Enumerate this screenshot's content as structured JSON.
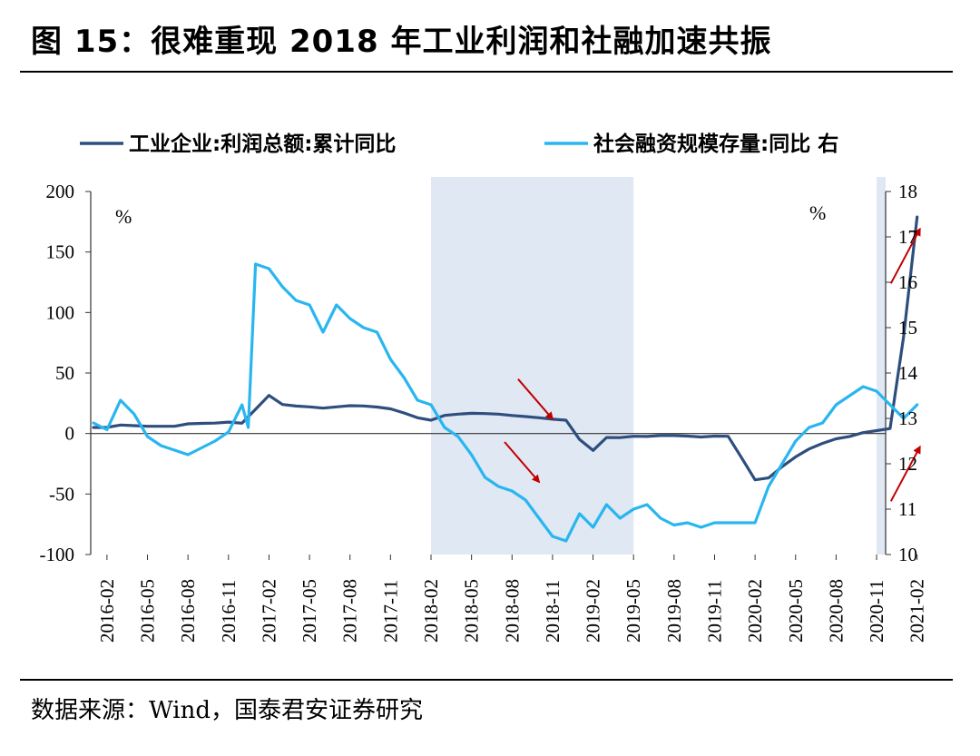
{
  "title": "图 15：很难重现 2018 年工业利润和社融加速共振",
  "source": "数据来源：Wind，国泰君安证券研究",
  "chart_data": {
    "type": "line",
    "legend": [
      "工业企业:利润总额:累计同比",
      "社会融资规模存量:同比 右"
    ],
    "left_axis": {
      "unit": "%",
      "range": [
        -100,
        200
      ],
      "ticks": [
        "200",
        "150",
        "100",
        "50",
        "0",
        "-50",
        "-100"
      ]
    },
    "right_axis": {
      "unit": "%",
      "range": [
        10,
        18
      ],
      "ticks": [
        "18",
        "17",
        "16",
        "15",
        "14",
        "13",
        "12",
        "11",
        "10"
      ]
    },
    "x_tick_labels": [
      "2016-02",
      "2016-05",
      "2016-08",
      "2016-11",
      "2017-02",
      "2017-05",
      "2017-08",
      "2017-11",
      "2018-02",
      "2018-05",
      "2018-08",
      "2018-11",
      "2019-02",
      "2019-05",
      "2019-08",
      "2019-11",
      "2020-02",
      "2020-05",
      "2020-08",
      "2020-11",
      "2021-02"
    ],
    "shaded_periods": [
      [
        "2018-02",
        "2019-04"
      ],
      [
        "2020-11",
        "2021-02"
      ]
    ],
    "series": [
      {
        "name": "工业企业:利润总额:累计同比",
        "axis": "left",
        "color": "#2e4e7e",
        "points": [
          [
            "2016-01",
            5
          ],
          [
            "2016-02",
            5
          ],
          [
            "2016-03",
            7
          ],
          [
            "2016-04",
            6.5
          ],
          [
            "2016-05",
            6
          ],
          [
            "2016-06",
            6
          ],
          [
            "2016-07",
            6
          ],
          [
            "2016-08",
            8
          ],
          [
            "2016-09",
            8.4
          ],
          [
            "2016-10",
            8.6
          ],
          [
            "2016-11",
            9.4
          ],
          [
            "2016-12",
            8.5
          ],
          [
            "2017-01",
            20
          ],
          [
            "2017-02",
            31.5
          ],
          [
            "2017-03",
            24
          ],
          [
            "2017-04",
            22.7
          ],
          [
            "2017-05",
            22
          ],
          [
            "2017-06",
            21
          ],
          [
            "2017-07",
            22
          ],
          [
            "2017-08",
            23
          ],
          [
            "2017-09",
            22.8
          ],
          [
            "2017-10",
            21.9
          ],
          [
            "2017-11",
            20.4
          ],
          [
            "2017-12",
            17
          ],
          [
            "2018-01",
            13
          ],
          [
            "2018-02",
            11
          ],
          [
            "2018-03",
            15
          ],
          [
            "2018-04",
            16
          ],
          [
            "2018-05",
            16.7
          ],
          [
            "2018-06",
            16.5
          ],
          [
            "2018-07",
            16
          ],
          [
            "2018-08",
            14.9
          ],
          [
            "2018-09",
            14
          ],
          [
            "2018-10",
            13
          ],
          [
            "2018-11",
            11.8
          ],
          [
            "2018-12",
            11
          ],
          [
            "2019-01",
            -5
          ],
          [
            "2019-02",
            -14
          ],
          [
            "2019-03",
            -3.3
          ],
          [
            "2019-04",
            -3.4
          ],
          [
            "2019-05",
            -2.3
          ],
          [
            "2019-06",
            -2.4
          ],
          [
            "2019-07",
            -1.7
          ],
          [
            "2019-08",
            -1.7
          ],
          [
            "2019-09",
            -2.1
          ],
          [
            "2019-10",
            -2.9
          ],
          [
            "2019-11",
            -2.1
          ],
          [
            "2019-12",
            -2.3
          ],
          [
            "2020-01",
            -20
          ],
          [
            "2020-02",
            -38.3
          ],
          [
            "2020-03",
            -36.7
          ],
          [
            "2020-04",
            -27.4
          ],
          [
            "2020-05",
            -19.3
          ],
          [
            "2020-06",
            -12.8
          ],
          [
            "2020-07",
            -8.1
          ],
          [
            "2020-08",
            -4.4
          ],
          [
            "2020-09",
            -2.4
          ],
          [
            "2020-10",
            0.7
          ],
          [
            "2020-11",
            2.4
          ],
          [
            "2020-12",
            4.1
          ],
          [
            "2021-01",
            80
          ],
          [
            "2021-02",
            178.9
          ]
        ]
      },
      {
        "name": "社会融资规模存量:同比 右",
        "axis": "right",
        "color": "#29b6f0",
        "points": [
          [
            "2016-01",
            12.9
          ],
          [
            "2016-02",
            12.75
          ],
          [
            "2016-03",
            13.4
          ],
          [
            "2016-04",
            13.1
          ],
          [
            "2016-05",
            12.6
          ],
          [
            "2016-06",
            12.4
          ],
          [
            "2016-07",
            12.3
          ],
          [
            "2016-08",
            12.2
          ],
          [
            "2016-09",
            12.35
          ],
          [
            "2016-10",
            12.5
          ],
          [
            "2016-11",
            12.7
          ],
          [
            "2016-12",
            13.3
          ],
          [
            "2016-12-15",
            12.8
          ],
          [
            "2017-01",
            16.4
          ],
          [
            "2017-02",
            16.3
          ],
          [
            "2017-03",
            15.9
          ],
          [
            "2017-04",
            15.6
          ],
          [
            "2017-05",
            15.5
          ],
          [
            "2017-06",
            14.9
          ],
          [
            "2017-07",
            15.5
          ],
          [
            "2017-08",
            15.2
          ],
          [
            "2017-09",
            15
          ],
          [
            "2017-10",
            14.9
          ],
          [
            "2017-11",
            14.3
          ],
          [
            "2017-12",
            13.9
          ],
          [
            "2018-01",
            13.4
          ],
          [
            "2018-02",
            13.3
          ],
          [
            "2018-03",
            12.8
          ],
          [
            "2018-04",
            12.6
          ],
          [
            "2018-05",
            12.2
          ],
          [
            "2018-06",
            11.7
          ],
          [
            "2018-07",
            11.5
          ],
          [
            "2018-08",
            11.4
          ],
          [
            "2018-09",
            11.2
          ],
          [
            "2018-10",
            10.8
          ],
          [
            "2018-11",
            10.4
          ],
          [
            "2018-12",
            10.3
          ],
          [
            "2019-01",
            10.9
          ],
          [
            "2019-02",
            10.6
          ],
          [
            "2019-03",
            11.1
          ],
          [
            "2019-04",
            10.8
          ],
          [
            "2019-05",
            11
          ],
          [
            "2019-06",
            11.1
          ],
          [
            "2019-07",
            10.8
          ],
          [
            "2019-08",
            10.65
          ],
          [
            "2019-09",
            10.7
          ],
          [
            "2019-10",
            10.6
          ],
          [
            "2019-11",
            10.7
          ],
          [
            "2019-12",
            10.7
          ],
          [
            "2020-01",
            10.7
          ],
          [
            "2020-02",
            10.7
          ],
          [
            "2020-03",
            11.5
          ],
          [
            "2020-04",
            12
          ],
          [
            "2020-05",
            12.5
          ],
          [
            "2020-06",
            12.8
          ],
          [
            "2020-07",
            12.9
          ],
          [
            "2020-08",
            13.3
          ],
          [
            "2020-09",
            13.5
          ],
          [
            "2020-10",
            13.7
          ],
          [
            "2020-11",
            13.6
          ],
          [
            "2020-12",
            13.3
          ],
          [
            "2021-01",
            13
          ],
          [
            "2021-02",
            13.3
          ]
        ]
      }
    ],
    "annotations": [
      {
        "type": "arrow",
        "color": "#c00000",
        "direction": "down-right",
        "at": [
          "2018-11",
          12
        ]
      },
      {
        "type": "arrow",
        "color": "#c00000",
        "direction": "down-right",
        "at": [
          "2018-10",
          -40
        ]
      },
      {
        "type": "arrow",
        "color": "#c00000",
        "direction": "up-right",
        "at": [
          "2021-01",
          160
        ]
      },
      {
        "type": "arrow",
        "color": "#c00000",
        "direction": "up-right",
        "at": [
          "2021-01",
          -20
        ]
      }
    ]
  }
}
